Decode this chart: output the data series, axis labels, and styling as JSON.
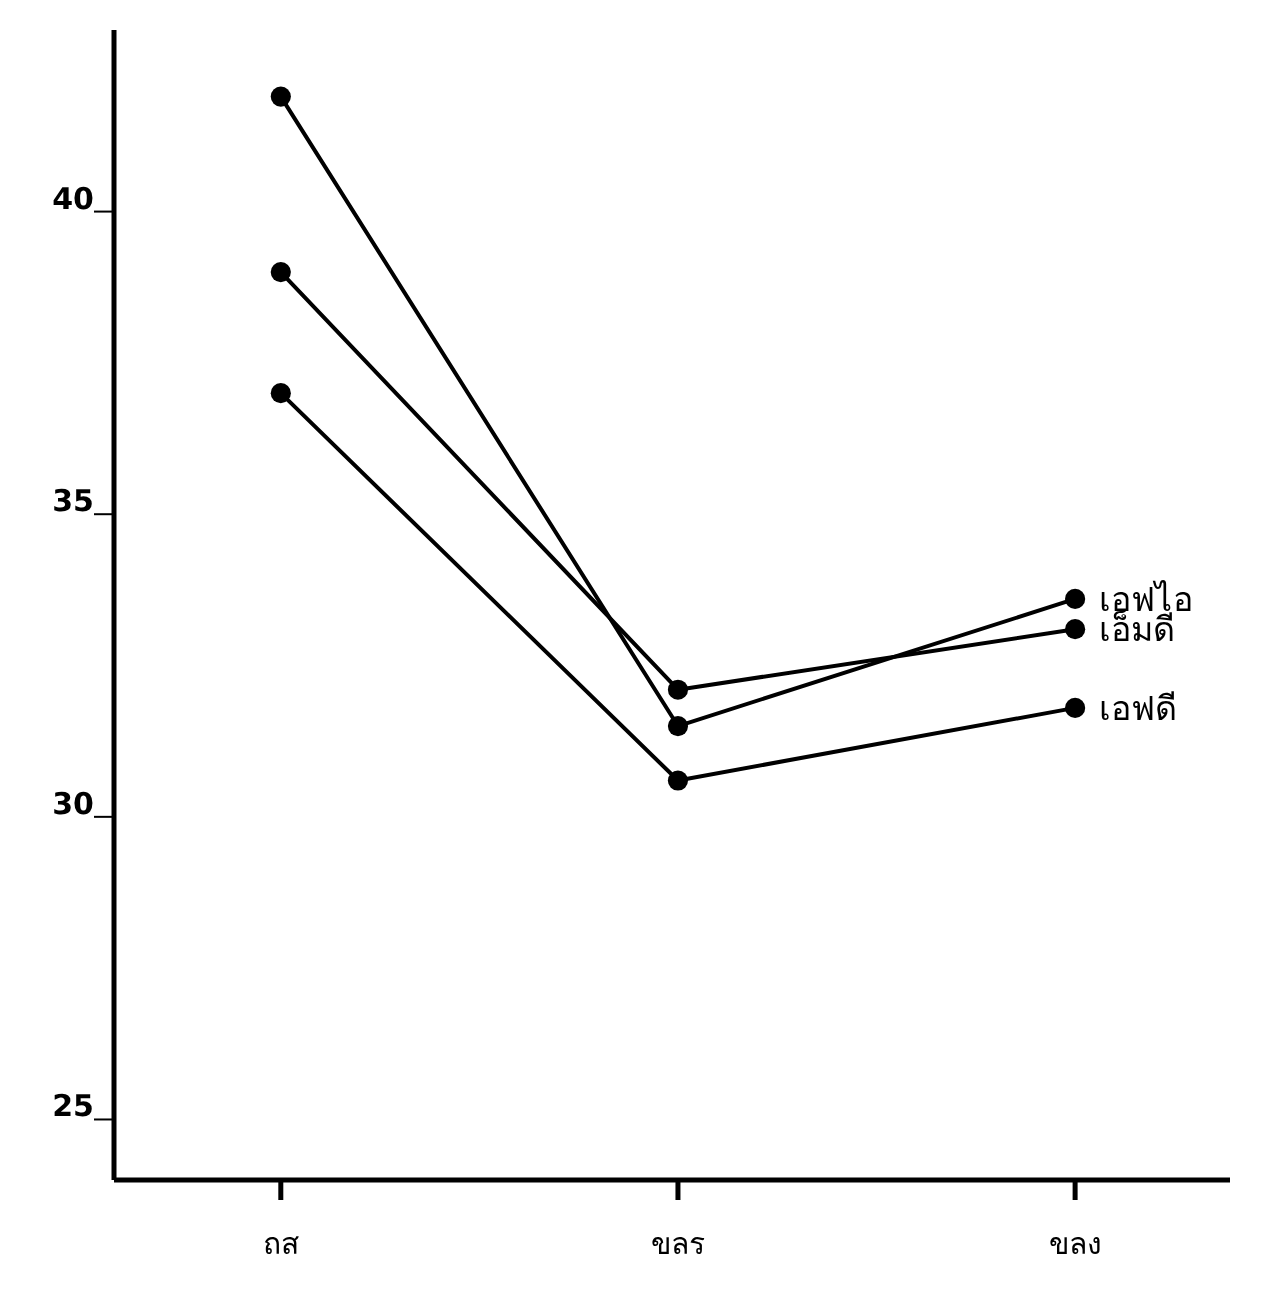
{
  "chart_data": {
    "type": "line",
    "categories": [
      "ถส",
      "ขลร",
      "ขลง"
    ],
    "series": [
      {
        "name": "เอฟไอ",
        "color": "#000000",
        "values": [
          41.9,
          31.5,
          33.6
        ]
      },
      {
        "name": "เอ็มดี",
        "color": "#000000",
        "values": [
          39.0,
          32.1,
          33.1
        ]
      },
      {
        "name": "เอฟดี",
        "color": "#000000",
        "values": [
          37.0,
          30.6,
          31.8
        ]
      }
    ],
    "ylim": [
      24,
      43
    ],
    "yticks": [
      25,
      30,
      35,
      40
    ],
    "marker": "circle",
    "line_style": "solid",
    "grid": false
  }
}
